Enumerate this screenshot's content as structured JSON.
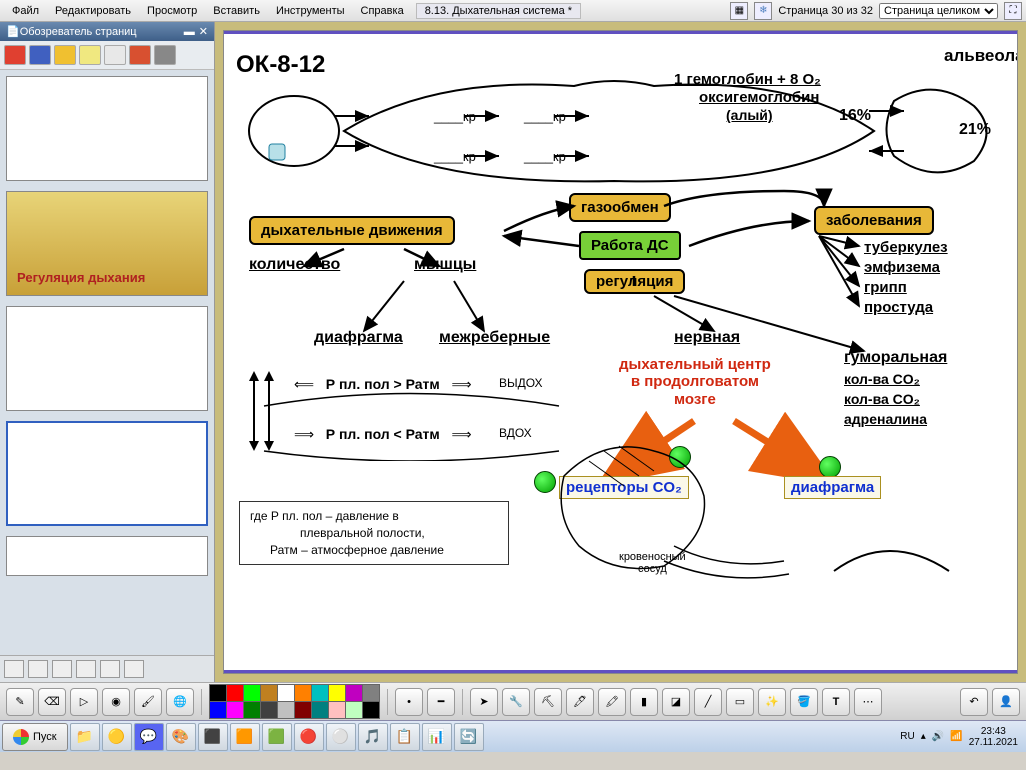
{
  "menu": {
    "file": "Файл",
    "edit": "Редактировать",
    "view": "Просмотр",
    "insert": "Вставить",
    "tools": "Инструменты",
    "help": "Справка"
  },
  "doc": {
    "title": "8.13. Дыхательная система *",
    "page_info": "Страница 30 из 32",
    "zoom": "Страница целиком"
  },
  "sidebar": {
    "title": "Обозреватель страниц",
    "thumb2_caption": "Регуляция дыхания"
  },
  "diagram": {
    "code": "ОК-8-12",
    "alveola": "альвеола",
    "hemoglobin": "1 гемоглобин + 8 О₂",
    "oxyhemoglobin": "оксигемоглобин",
    "aly": "(алый)",
    "pct16": "16%",
    "pct21": "21%",
    "kr": "кр",
    "breath_moves": "дыхательные движения",
    "gas_exchange": "газообмен",
    "diseases": "заболевания",
    "work_ds": "Работа ДС",
    "quantity": "количество",
    "muscles": "мышцы",
    "regulation": "регуляция",
    "tuberculosis": "туберкулез",
    "emphysema": "эмфизема",
    "flu": "грипп",
    "cold": "простуда",
    "diaphragm": "диафрагма",
    "intercostal": "межреберные",
    "nervous": "нервная",
    "humoral": "гуморальная",
    "co2": "кол-ва CO₂",
    "adrenaline": "адреналина",
    "exhale": "ВЫДОХ",
    "inhale": "ВДОХ",
    "p_gt": "Р пл. пол > Ратм",
    "p_lt": "Р пл. пол < Ратм",
    "legend1": "где Р пл. пол – давление в",
    "legend2": "плевральной полости,",
    "legend3": "Ратм – атмосферное давление",
    "resp_center1": "дыхательный центр",
    "resp_center2": "в продолговатом",
    "resp_center3": "мозге",
    "receptors": "рецепторы CO₂",
    "diaphragm_blue": "диафрагма",
    "blood_vessel": "кровеносный",
    "blood_vessel2": "сосуд"
  },
  "palette": [
    "#000000",
    "#ff0000",
    "#00ff00",
    "#c08020",
    "#ffffff",
    "#ff8000",
    "#00c0c0",
    "#ffff00",
    "#c000c0",
    "#808080",
    "#0000ff",
    "#ff00ff",
    "#008000",
    "#404040",
    "#c0c0c0",
    "#800000",
    "#008080",
    "#ffc0c0",
    "#c0ffc0",
    "#000000"
  ],
  "taskbar": {
    "start": "Пуск",
    "lang": "RU",
    "time": "23:43",
    "date": "27.11.2021"
  }
}
